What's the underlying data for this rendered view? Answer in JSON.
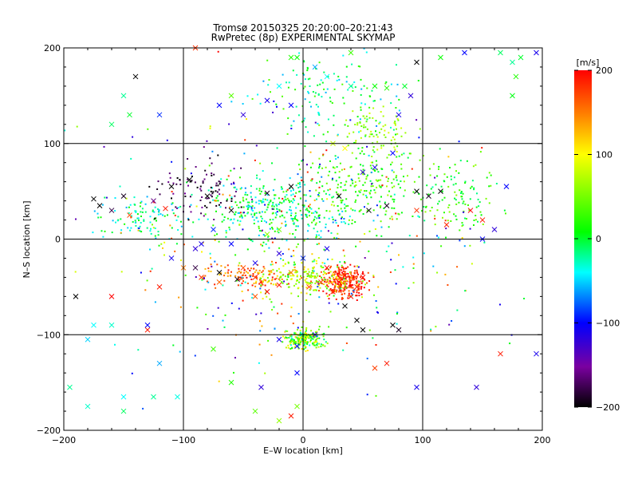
{
  "chart_data": {
    "type": "scatter",
    "title": "Tromsø 20150325 20:20:00–20:21:43",
    "subtitle": "RwPretec (8p) EXPERIMENTAL SKYMAP",
    "xlabel": "E–W location [km]",
    "ylabel": "N–S location [km]",
    "xlim": [
      -200,
      200
    ],
    "ylim": [
      -200,
      200
    ],
    "x_ticks": [
      "−200",
      "−100",
      "0",
      "100",
      "200"
    ],
    "y_ticks": [
      "−200",
      "−100",
      "0",
      "100",
      "200"
    ],
    "grid": true,
    "colorbar": {
      "label": "[m/s]",
      "range": [
        -200,
        200
      ],
      "ticks": [
        "200",
        "100",
        "0",
        "−100",
        "−200"
      ]
    },
    "series": [
      {
        "marker": "x",
        "points": [
          [
            -175,
            42,
            -200
          ],
          [
            -170,
            35,
            -200
          ],
          [
            -160,
            30,
            -180
          ],
          [
            -150,
            45,
            -190
          ],
          [
            -125,
            40,
            -160
          ],
          [
            -110,
            55,
            -200
          ],
          [
            -95,
            62,
            -200
          ],
          [
            -80,
            45,
            -210
          ],
          [
            -60,
            30,
            -200
          ],
          [
            -30,
            48,
            -190
          ],
          [
            -10,
            55,
            -200
          ],
          [
            95,
            50,
            -200
          ],
          [
            105,
            45,
            -190
          ],
          [
            115,
            50,
            -200
          ],
          [
            30,
            45,
            -200
          ],
          [
            55,
            30,
            -200
          ],
          [
            70,
            35,
            -190
          ],
          [
            -90,
            -30,
            -180
          ],
          [
            -70,
            -35,
            -200
          ],
          [
            -55,
            -42,
            -190
          ],
          [
            35,
            -70,
            -200
          ],
          [
            45,
            -85,
            -200
          ],
          [
            50,
            -95,
            -210
          ],
          [
            75,
            -90,
            -200
          ],
          [
            80,
            -95,
            -190
          ],
          [
            -190,
            -60,
            -200
          ],
          [
            95,
            185,
            -200
          ],
          [
            -140,
            170,
            -200
          ],
          [
            -40,
            -40,
            180
          ],
          [
            -30,
            -55,
            200
          ],
          [
            -20,
            -48,
            190
          ],
          [
            20,
            -30,
            200
          ],
          [
            30,
            -45,
            200
          ],
          [
            40,
            -60,
            195
          ],
          [
            35,
            -38,
            200
          ],
          [
            45,
            -50,
            190
          ],
          [
            50,
            -40,
            200
          ],
          [
            25,
            -55,
            185
          ],
          [
            15,
            -45,
            175
          ],
          [
            -10,
            -35,
            150
          ],
          [
            -50,
            -30,
            170
          ],
          [
            -70,
            -45,
            160
          ],
          [
            -85,
            -40,
            180
          ],
          [
            -100,
            -30,
            150
          ],
          [
            -120,
            -50,
            190
          ],
          [
            -130,
            -95,
            190
          ],
          [
            -160,
            -60,
            200
          ],
          [
            140,
            30,
            200
          ],
          [
            150,
            20,
            190
          ],
          [
            120,
            15,
            185
          ],
          [
            95,
            30,
            180
          ],
          [
            70,
            -130,
            190
          ],
          [
            -10,
            -185,
            190
          ],
          [
            -115,
            32,
            190
          ],
          [
            -145,
            25,
            170
          ],
          [
            -90,
            200,
            180
          ],
          [
            165,
            -120,
            190
          ],
          [
            60,
            -135,
            175
          ],
          [
            -40,
            -60,
            165
          ],
          [
            5,
            -50,
            170
          ],
          [
            25,
            100,
            80
          ],
          [
            35,
            95,
            100
          ],
          [
            -30,
            5,
            60
          ],
          [
            -20,
            10,
            50
          ],
          [
            -5,
            190,
            10
          ],
          [
            -10,
            190,
            20
          ],
          [
            40,
            195,
            30
          ],
          [
            -60,
            150,
            40
          ],
          [
            -160,
            120,
            -10
          ],
          [
            -150,
            150,
            -20
          ],
          [
            -145,
            130,
            0
          ],
          [
            60,
            160,
            10
          ],
          [
            70,
            158,
            20
          ],
          [
            85,
            160,
            0
          ],
          [
            115,
            190,
            10
          ],
          [
            165,
            195,
            -10
          ],
          [
            175,
            185,
            -20
          ],
          [
            182,
            190,
            0
          ],
          [
            178,
            170,
            20
          ],
          [
            175,
            150,
            5
          ],
          [
            -175,
            -90,
            -40
          ],
          [
            -160,
            -90,
            -30
          ],
          [
            -180,
            -105,
            -50
          ],
          [
            -195,
            -155,
            -20
          ],
          [
            -180,
            -175,
            -30
          ],
          [
            -150,
            -165,
            -40
          ],
          [
            -125,
            -165,
            -20
          ],
          [
            -105,
            -165,
            -35
          ],
          [
            -130,
            -90,
            -100
          ],
          [
            -120,
            -130,
            -60
          ],
          [
            -150,
            -180,
            -10
          ],
          [
            -75,
            -115,
            30
          ],
          [
            -60,
            -150,
            20
          ],
          [
            -40,
            -180,
            40
          ],
          [
            -20,
            -190,
            60
          ],
          [
            -5,
            -175,
            50
          ],
          [
            -110,
            -20,
            -110
          ],
          [
            -90,
            -10,
            -120
          ],
          [
            -60,
            -5,
            -100
          ],
          [
            -40,
            -25,
            -110
          ],
          [
            -20,
            -15,
            -120
          ],
          [
            0,
            -20,
            -90
          ],
          [
            20,
            -10,
            -110
          ],
          [
            50,
            70,
            -120
          ],
          [
            60,
            75,
            -110
          ],
          [
            75,
            90,
            -100
          ],
          [
            80,
            130,
            -110
          ],
          [
            90,
            150,
            -120
          ],
          [
            -85,
            -5,
            -110
          ],
          [
            -75,
            10,
            -90
          ],
          [
            10,
            -100,
            -120
          ],
          [
            -5,
            -112,
            -100
          ],
          [
            -20,
            -105,
            -110
          ],
          [
            160,
            10,
            -120
          ],
          [
            150,
            0,
            -100
          ],
          [
            170,
            55,
            -100
          ],
          [
            195,
            -120,
            -110
          ],
          [
            145,
            -155,
            -120
          ],
          [
            95,
            -155,
            -110
          ],
          [
            -5,
            -140,
            -100
          ],
          [
            -35,
            -155,
            -120
          ],
          [
            -10,
            140,
            -100
          ],
          [
            -30,
            145,
            -110
          ],
          [
            -50,
            130,
            -120
          ],
          [
            -70,
            140,
            -100
          ],
          [
            -120,
            130,
            -90
          ],
          [
            135,
            195,
            -100
          ],
          [
            195,
            195,
            -110
          ],
          [
            10,
            180,
            -60
          ],
          [
            20,
            170,
            -40
          ],
          [
            40,
            160,
            -20
          ],
          [
            -20,
            160,
            -40
          ]
        ]
      },
      {
        "marker": "dot",
        "clusters": [
          {
            "cx": 35,
            "cy": -45,
            "sx": 14,
            "sy": 12,
            "n": 260,
            "vmin": 150,
            "vmax": 210
          },
          {
            "cx": 0,
            "cy": -105,
            "sx": 12,
            "sy": 7,
            "n": 200,
            "vmin": -40,
            "vmax": 120
          },
          {
            "cx": -45,
            "cy": -38,
            "sx": 26,
            "sy": 9,
            "n": 120,
            "vmin": 120,
            "vmax": 200
          },
          {
            "cx": 5,
            "cy": -40,
            "sx": 28,
            "sy": 12,
            "n": 180,
            "vmin": 30,
            "vmax": 120
          },
          {
            "cx": -20,
            "cy": 30,
            "sx": 45,
            "sy": 25,
            "n": 340,
            "vmin": -60,
            "vmax": 40
          },
          {
            "cx": 55,
            "cy": 60,
            "sx": 35,
            "sy": 35,
            "n": 220,
            "vmin": -10,
            "vmax": 70
          },
          {
            "cx": -135,
            "cy": 22,
            "sx": 25,
            "sy": 18,
            "n": 110,
            "vmin": -60,
            "vmax": 20
          },
          {
            "cx": -90,
            "cy": 55,
            "sx": 25,
            "sy": 22,
            "n": 90,
            "vmin": -210,
            "vmax": -150
          },
          {
            "cx": 130,
            "cy": 45,
            "sx": 25,
            "sy": 25,
            "n": 110,
            "vmin": -20,
            "vmax": 60
          },
          {
            "cx": 0,
            "cy": 0,
            "sx": 110,
            "sy": 100,
            "n": 420,
            "vmin": -150,
            "vmax": 200
          },
          {
            "cx": 25,
            "cy": 150,
            "sx": 45,
            "sy": 30,
            "n": 140,
            "vmin": -60,
            "vmax": 40
          },
          {
            "cx": 60,
            "cy": 115,
            "sx": 20,
            "sy": 15,
            "n": 70,
            "vmin": 40,
            "vmax": 90
          }
        ]
      }
    ]
  }
}
